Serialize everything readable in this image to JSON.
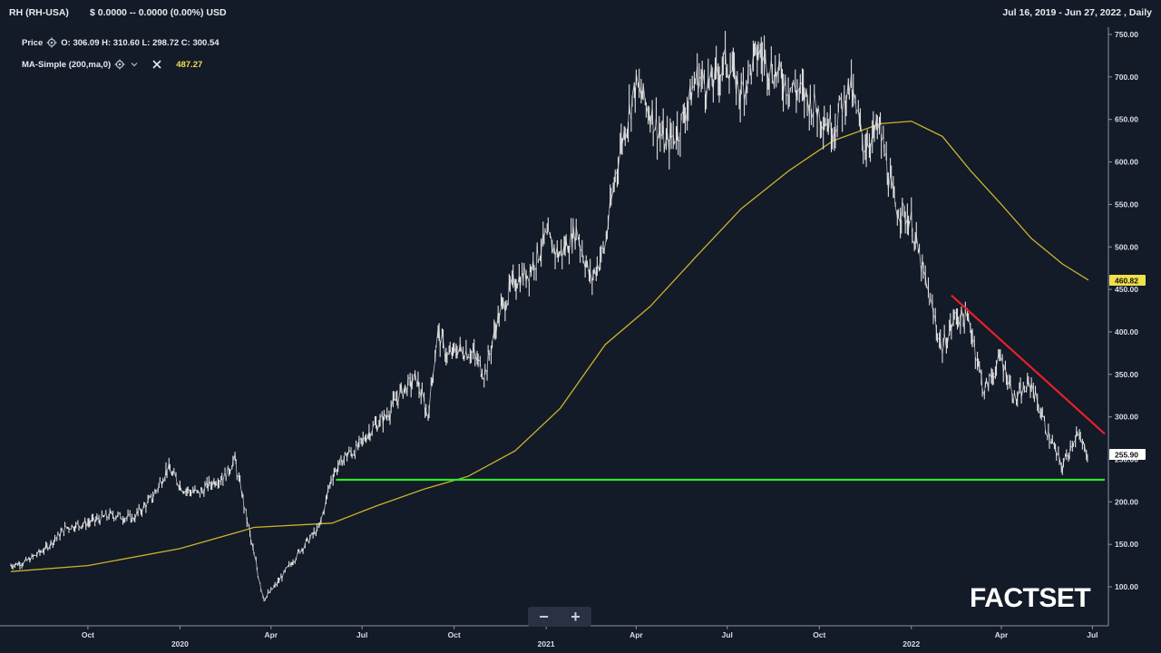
{
  "header": {
    "symbol": "RH (RH-USA)",
    "quote": "$ 0.0000 -- 0.0000 (0.00%) USD",
    "range": "Jul 16, 2019 - Jun 27, 2022 , Daily"
  },
  "legend": {
    "price_label": "Price",
    "ohlc": "O: 306.09 H: 310.60 L: 298.72 C: 300.54",
    "ma_label": "MA-Simple (200,ma,0)",
    "ma_value": "487.27"
  },
  "zoom": {
    "minus": "−",
    "plus": "+"
  },
  "logo": "FACTSET",
  "colors": {
    "background": "#131a28",
    "price": "#e0e0e0",
    "ma": "#c9b52a",
    "trendline": "#e8202a",
    "support": "#2ee82e",
    "ma_badge": "#f0e04a",
    "price_badge": "#ffffff"
  },
  "chart_data": {
    "type": "line",
    "x_range": [
      "2019-07-16",
      "2022-06-27"
    ],
    "ylim": [
      50,
      760
    ],
    "y_ticks": [
      "100.00",
      "150.00",
      "200.00",
      "250.00",
      "300.00",
      "350.00",
      "400.00",
      "450.00",
      "500.00",
      "550.00",
      "600.00",
      "650.00",
      "700.00",
      "750.00"
    ],
    "x_ticks": [
      {
        "label": "Oct",
        "date": "2019-10-01"
      },
      {
        "label": "2020",
        "date": "2020-01-01"
      },
      {
        "label": "Apr",
        "date": "2020-04-01"
      },
      {
        "label": "Jul",
        "date": "2020-07-01"
      },
      {
        "label": "Oct",
        "date": "2020-10-01"
      },
      {
        "label": "2021",
        "date": "2021-01-01"
      },
      {
        "label": "Apr",
        "date": "2021-04-01"
      },
      {
        "label": "Jul",
        "date": "2021-07-01"
      },
      {
        "label": "Oct",
        "date": "2021-10-01"
      },
      {
        "label": "2022",
        "date": "2022-01-01"
      },
      {
        "label": "Apr",
        "date": "2022-04-01"
      },
      {
        "label": "Jul",
        "date": "2022-07-01"
      }
    ],
    "series": [
      {
        "name": "Price",
        "x": [
          "2019-07-16",
          "2019-08-01",
          "2019-08-20",
          "2019-09-10",
          "2019-10-01",
          "2019-10-25",
          "2019-11-15",
          "2019-12-05",
          "2019-12-20",
          "2020-01-05",
          "2020-01-20",
          "2020-02-05",
          "2020-02-15",
          "2020-02-25",
          "2020-03-05",
          "2020-03-15",
          "2020-03-25",
          "2020-04-05",
          "2020-04-20",
          "2020-05-05",
          "2020-05-20",
          "2020-06-01",
          "2020-06-15",
          "2020-06-25",
          "2020-07-10",
          "2020-07-25",
          "2020-08-10",
          "2020-08-25",
          "2020-09-05",
          "2020-09-15",
          "2020-09-25",
          "2020-10-05",
          "2020-10-20",
          "2020-11-01",
          "2020-11-15",
          "2020-12-01",
          "2020-12-15",
          "2021-01-01",
          "2021-01-15",
          "2021-02-01",
          "2021-02-15",
          "2021-03-01",
          "2021-03-15",
          "2021-04-01",
          "2021-04-15",
          "2021-05-01",
          "2021-05-15",
          "2021-06-01",
          "2021-06-15",
          "2021-07-01",
          "2021-07-15",
          "2021-08-01",
          "2021-08-15",
          "2021-09-01",
          "2021-09-15",
          "2021-10-01",
          "2021-10-15",
          "2021-11-01",
          "2021-11-15",
          "2021-12-01",
          "2021-12-15",
          "2022-01-01",
          "2022-01-15",
          "2022-02-01",
          "2022-02-15",
          "2022-03-01",
          "2022-03-15",
          "2022-04-01",
          "2022-04-15",
          "2022-05-01",
          "2022-05-15",
          "2022-06-01",
          "2022-06-15",
          "2022-06-27"
        ],
        "values": [
          125,
          130,
          145,
          170,
          175,
          185,
          180,
          205,
          240,
          215,
          210,
          225,
          230,
          250,
          200,
          140,
          85,
          100,
          125,
          150,
          170,
          230,
          255,
          260,
          285,
          300,
          330,
          345,
          300,
          400,
          370,
          380,
          375,
          350,
          420,
          460,
          470,
          510,
          490,
          520,
          460,
          500,
          610,
          690,
          660,
          620,
          640,
          700,
          690,
          720,
          680,
          730,
          710,
          690,
          680,
          660,
          640,
          690,
          620,
          640,
          550,
          530,
          460,
          380,
          420,
          410,
          330,
          370,
          320,
          340,
          290,
          240,
          280,
          256
        ]
      },
      {
        "name": "MA-Simple (200,ma,0)",
        "x": [
          "2019-07-16",
          "2019-10-01",
          "2020-01-01",
          "2020-03-01",
          "2020-03-15",
          "2020-06-01",
          "2020-07-15",
          "2020-09-01",
          "2020-10-15",
          "2020-12-01",
          "2021-01-15",
          "2021-03-01",
          "2021-04-15",
          "2021-06-01",
          "2021-07-15",
          "2021-09-01",
          "2021-10-15",
          "2021-12-01",
          "2022-01-01",
          "2022-02-01",
          "2022-03-01",
          "2022-04-01",
          "2022-05-01",
          "2022-06-01",
          "2022-06-27"
        ],
        "values": [
          118,
          125,
          145,
          165,
          170,
          175,
          195,
          215,
          230,
          260,
          310,
          385,
          430,
          490,
          545,
          590,
          625,
          645,
          648,
          630,
          590,
          550,
          510,
          480,
          461
        ]
      }
    ],
    "annotations": [
      {
        "type": "trendline",
        "from": [
          "2022-02-10",
          443
        ],
        "to": [
          "2022-06-27",
          280
        ]
      },
      {
        "type": "support",
        "from": [
          "2020-06-05",
          226
        ],
        "to": [
          "2022-06-27",
          226
        ]
      }
    ],
    "last_values": {
      "ma": "460.82",
      "price": "255.90"
    }
  }
}
